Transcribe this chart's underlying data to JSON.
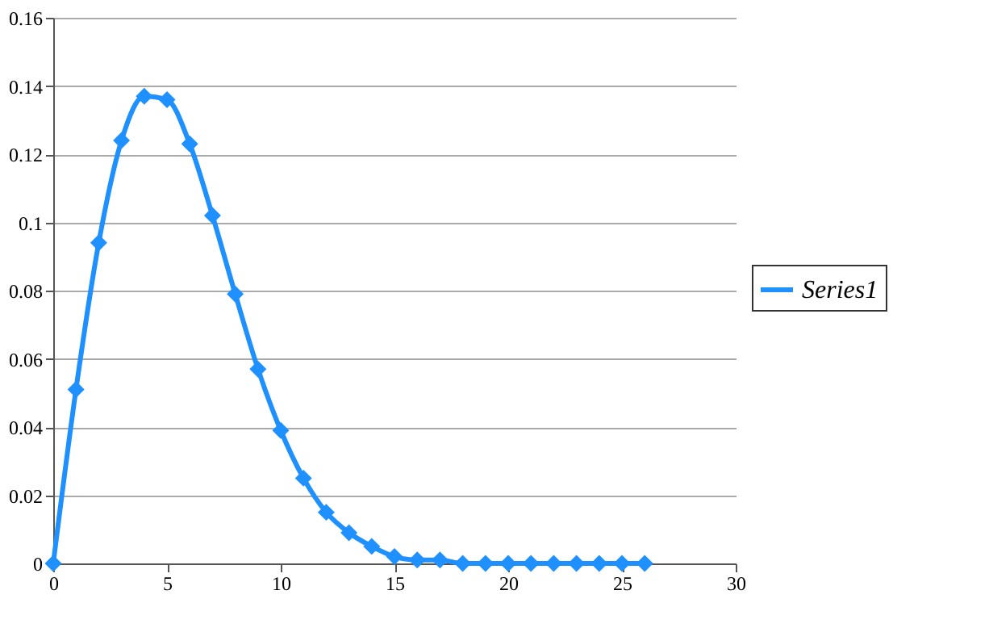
{
  "chart_data": {
    "type": "line",
    "x": [
      0,
      1,
      2,
      3,
      4,
      5,
      6,
      7,
      8,
      9,
      10,
      11,
      12,
      13,
      14,
      15,
      16,
      17,
      18,
      19,
      20,
      21,
      22,
      23,
      24,
      25,
      26
    ],
    "series": [
      {
        "name": "Series1",
        "color": "#1e90ff",
        "values": [
          0,
          0.051,
          0.094,
          0.124,
          0.137,
          0.136,
          0.123,
          0.102,
          0.079,
          0.057,
          0.039,
          0.025,
          0.015,
          0.009,
          0.005,
          0.002,
          0.001,
          0.001,
          0,
          0,
          0,
          0,
          0,
          0,
          0,
          0,
          0
        ]
      }
    ],
    "xlim": [
      0,
      30
    ],
    "xticks": [
      0,
      5,
      10,
      15,
      20,
      25,
      30
    ],
    "ylim": [
      0,
      0.16
    ],
    "yticks": [
      0,
      0.02,
      0.04,
      0.06,
      0.08,
      0.1,
      0.12,
      0.14,
      0.16
    ],
    "grid": "y",
    "legend": "right",
    "marker": "diamond",
    "line_style": "solid"
  }
}
